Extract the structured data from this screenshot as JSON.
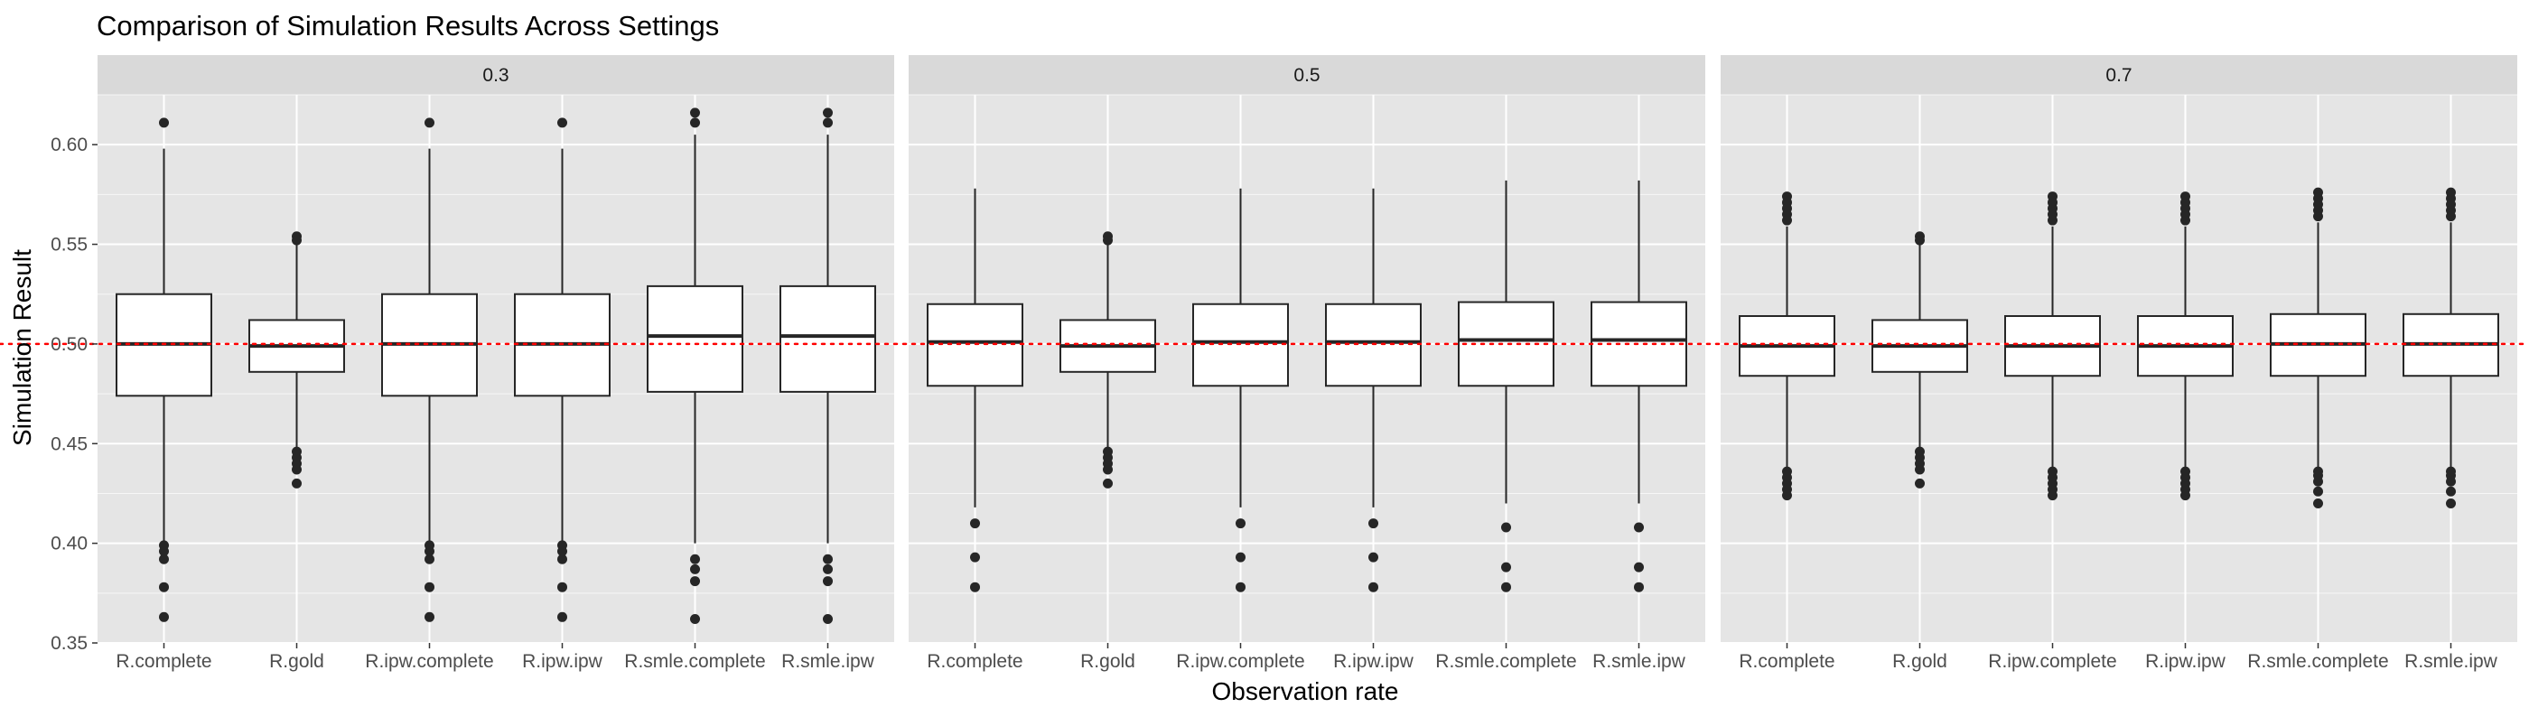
{
  "chart_data": {
    "type": "boxplot",
    "title": "Comparison of Simulation Results Across Settings",
    "xlabel": "Observation rate",
    "ylabel": "Simulation Result",
    "ylim": [
      0.35,
      0.625
    ],
    "yticks": [
      0.35,
      0.4,
      0.45,
      0.5,
      0.55,
      0.6
    ],
    "ytick_labels": [
      "0.35",
      "0.40",
      "0.45",
      "0.50",
      "0.55",
      "0.60"
    ],
    "reference_line": {
      "y": 0.5,
      "color": "#ff0000",
      "style": "dotted"
    },
    "grid": true,
    "categories": [
      "R.complete",
      "R.gold",
      "R.ipw.complete",
      "R.ipw.ipw",
      "R.smle.complete",
      "R.smle.ipw"
    ],
    "facets": [
      {
        "label": "0.3",
        "boxes": [
          {
            "name": "R.complete",
            "q1": 0.474,
            "median": 0.5,
            "q3": 0.525,
            "whisker_low": 0.4,
            "whisker_high": 0.598,
            "outliers": [
              0.611,
              0.399,
              0.396,
              0.392,
              0.378,
              0.363
            ]
          },
          {
            "name": "R.gold",
            "q1": 0.486,
            "median": 0.499,
            "q3": 0.512,
            "whisker_low": 0.448,
            "whisker_high": 0.55,
            "outliers": [
              0.554,
              0.552,
              0.446,
              0.443,
              0.44,
              0.437,
              0.43
            ]
          },
          {
            "name": "R.ipw.complete",
            "q1": 0.474,
            "median": 0.5,
            "q3": 0.525,
            "whisker_low": 0.4,
            "whisker_high": 0.598,
            "outliers": [
              0.611,
              0.399,
              0.396,
              0.392,
              0.378,
              0.363
            ]
          },
          {
            "name": "R.ipw.ipw",
            "q1": 0.474,
            "median": 0.5,
            "q3": 0.525,
            "whisker_low": 0.4,
            "whisker_high": 0.598,
            "outliers": [
              0.611,
              0.399,
              0.396,
              0.392,
              0.378,
              0.363
            ]
          },
          {
            "name": "R.smle.complete",
            "q1": 0.476,
            "median": 0.504,
            "q3": 0.529,
            "whisker_low": 0.4,
            "whisker_high": 0.605,
            "outliers": [
              0.616,
              0.611,
              0.392,
              0.387,
              0.381,
              0.362
            ]
          },
          {
            "name": "R.smle.ipw",
            "q1": 0.476,
            "median": 0.504,
            "q3": 0.529,
            "whisker_low": 0.4,
            "whisker_high": 0.605,
            "outliers": [
              0.616,
              0.611,
              0.392,
              0.387,
              0.381,
              0.362
            ]
          }
        ]
      },
      {
        "label": "0.5",
        "boxes": [
          {
            "name": "R.complete",
            "q1": 0.479,
            "median": 0.501,
            "q3": 0.52,
            "whisker_low": 0.418,
            "whisker_high": 0.578,
            "outliers": [
              0.41,
              0.393,
              0.378
            ]
          },
          {
            "name": "R.gold",
            "q1": 0.486,
            "median": 0.499,
            "q3": 0.512,
            "whisker_low": 0.448,
            "whisker_high": 0.55,
            "outliers": [
              0.554,
              0.552,
              0.446,
              0.443,
              0.44,
              0.437,
              0.43
            ]
          },
          {
            "name": "R.ipw.complete",
            "q1": 0.479,
            "median": 0.501,
            "q3": 0.52,
            "whisker_low": 0.418,
            "whisker_high": 0.578,
            "outliers": [
              0.41,
              0.393,
              0.378
            ]
          },
          {
            "name": "R.ipw.ipw",
            "q1": 0.479,
            "median": 0.501,
            "q3": 0.52,
            "whisker_low": 0.418,
            "whisker_high": 0.578,
            "outliers": [
              0.41,
              0.393,
              0.378
            ]
          },
          {
            "name": "R.smle.complete",
            "q1": 0.479,
            "median": 0.502,
            "q3": 0.521,
            "whisker_low": 0.42,
            "whisker_high": 0.582,
            "outliers": [
              0.408,
              0.388,
              0.378
            ]
          },
          {
            "name": "R.smle.ipw",
            "q1": 0.479,
            "median": 0.502,
            "q3": 0.521,
            "whisker_low": 0.42,
            "whisker_high": 0.582,
            "outliers": [
              0.408,
              0.388,
              0.378
            ]
          }
        ]
      },
      {
        "label": "0.7",
        "boxes": [
          {
            "name": "R.complete",
            "q1": 0.484,
            "median": 0.499,
            "q3": 0.514,
            "whisker_low": 0.438,
            "whisker_high": 0.559,
            "outliers": [
              0.574,
              0.571,
              0.568,
              0.565,
              0.562,
              0.436,
              0.433,
              0.43,
              0.427,
              0.424
            ]
          },
          {
            "name": "R.gold",
            "q1": 0.486,
            "median": 0.499,
            "q3": 0.512,
            "whisker_low": 0.448,
            "whisker_high": 0.55,
            "outliers": [
              0.554,
              0.552,
              0.446,
              0.443,
              0.44,
              0.437,
              0.43
            ]
          },
          {
            "name": "R.ipw.complete",
            "q1": 0.484,
            "median": 0.499,
            "q3": 0.514,
            "whisker_low": 0.438,
            "whisker_high": 0.559,
            "outliers": [
              0.574,
              0.571,
              0.568,
              0.565,
              0.562,
              0.436,
              0.433,
              0.43,
              0.427,
              0.424
            ]
          },
          {
            "name": "R.ipw.ipw",
            "q1": 0.484,
            "median": 0.499,
            "q3": 0.514,
            "whisker_low": 0.438,
            "whisker_high": 0.559,
            "outliers": [
              0.574,
              0.571,
              0.568,
              0.565,
              0.562,
              0.436,
              0.433,
              0.43,
              0.427,
              0.424
            ]
          },
          {
            "name": "R.smle.complete",
            "q1": 0.484,
            "median": 0.5,
            "q3": 0.515,
            "whisker_low": 0.438,
            "whisker_high": 0.561,
            "outliers": [
              0.576,
              0.573,
              0.57,
              0.567,
              0.564,
              0.436,
              0.434,
              0.431,
              0.426,
              0.42
            ]
          },
          {
            "name": "R.smle.ipw",
            "q1": 0.484,
            "median": 0.5,
            "q3": 0.515,
            "whisker_low": 0.438,
            "whisker_high": 0.561,
            "outliers": [
              0.576,
              0.573,
              0.57,
              0.567,
              0.564,
              0.436,
              0.434,
              0.431,
              0.426,
              0.42
            ]
          }
        ]
      }
    ]
  },
  "colors": {
    "panel_bg": "#e5e5e5",
    "strip_bg": "#d9d9d9",
    "grid": "#ffffff",
    "box_fill": "#ffffff",
    "box_stroke": "#262626",
    "outlier": "#262626",
    "reference": "#ff0000"
  }
}
